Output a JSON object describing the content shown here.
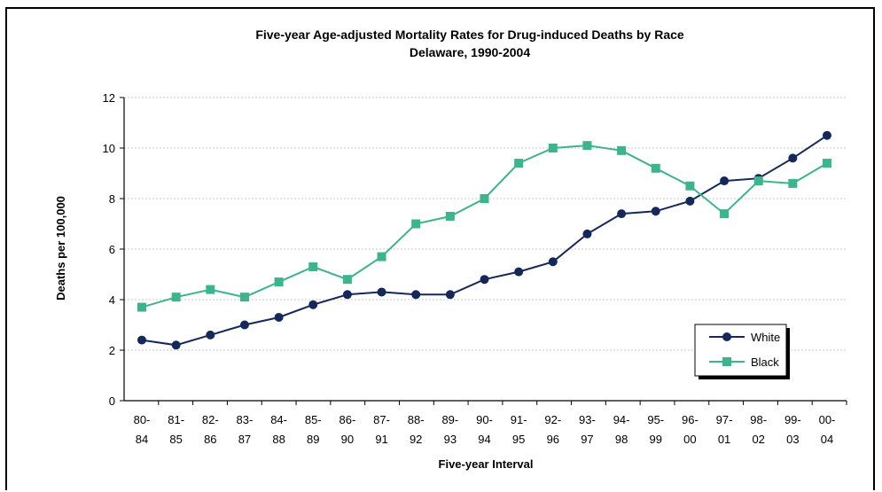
{
  "chart_data": {
    "type": "line",
    "title": "Five-year Age-adjusted Mortality Rates for Drug-induced Deaths by Race",
    "subtitle": "Delaware, 1990-2004",
    "xlabel": "Five-year Interval",
    "ylabel": "Deaths per 100,000",
    "ylim": [
      0,
      12
    ],
    "yticks": [
      "0",
      "2",
      "4",
      "6",
      "8",
      "10",
      "12"
    ],
    "grid": true,
    "legend_position": "bottom-right",
    "categories": [
      [
        "80-",
        "84"
      ],
      [
        "81-",
        "85"
      ],
      [
        "82-",
        "86"
      ],
      [
        "83-",
        "87"
      ],
      [
        "84-",
        "88"
      ],
      [
        "85-",
        "89"
      ],
      [
        "86-",
        "90"
      ],
      [
        "87-",
        "91"
      ],
      [
        "88-",
        "92"
      ],
      [
        "89-",
        "93"
      ],
      [
        "90-",
        "94"
      ],
      [
        "91-",
        "95"
      ],
      [
        "92-",
        "96"
      ],
      [
        "93-",
        "97"
      ],
      [
        "94-",
        "98"
      ],
      [
        "95-",
        "99"
      ],
      [
        "96-",
        "00"
      ],
      [
        "97-",
        "01"
      ],
      [
        "98-",
        "02"
      ],
      [
        "99-",
        "03"
      ],
      [
        "00-",
        "04"
      ]
    ],
    "series": [
      {
        "name": "White",
        "color": "#14285a",
        "marker": "circle",
        "values": [
          2.4,
          2.2,
          2.6,
          3.0,
          3.3,
          3.8,
          4.2,
          4.3,
          4.2,
          4.2,
          4.8,
          5.1,
          5.5,
          6.6,
          7.4,
          7.5,
          7.9,
          8.7,
          8.8,
          9.6,
          10.5
        ]
      },
      {
        "name": "Black",
        "color": "#3cb48c",
        "marker": "square",
        "values": [
          3.7,
          4.1,
          4.4,
          4.1,
          4.7,
          5.3,
          4.8,
          5.7,
          7.0,
          7.3,
          8.0,
          9.4,
          10.0,
          10.1,
          9.9,
          9.2,
          8.5,
          7.4,
          8.7,
          8.6,
          9.4
        ]
      }
    ]
  }
}
